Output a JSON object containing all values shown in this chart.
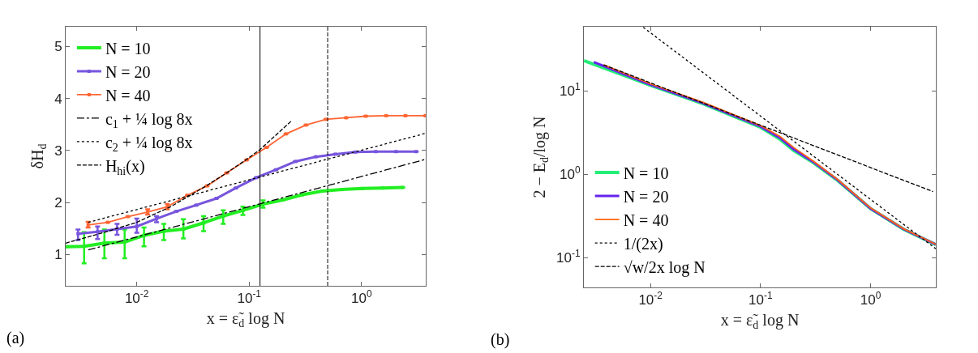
{
  "chart_data": [
    {
      "type": "line",
      "xlabel": "x = ε̃$_{d}$ log N",
      "ylabel": "δH$_{d}$",
      "log": "x",
      "grid": false,
      "legend": "top left",
      "xlim": [
        0.00233,
        3.73
      ],
      "ylim": [
        0.4,
        5.38
      ],
      "xticks": [
        {
          "value": 0.01,
          "label": "10$^{-2}$"
        },
        {
          "value": 0.1,
          "label": "10$^{-1}$"
        },
        {
          "value": 1,
          "label": "10$^{0}$"
        }
      ],
      "yticks": [
        1,
        2,
        3,
        4,
        5
      ],
      "ref_lines": [
        {
          "axis": "x",
          "value": 0.125,
          "color": "#000000",
          "line_style": "solid"
        },
        {
          "axis": "x",
          "value": 0.5,
          "color": "#000000",
          "line_style": "dashed"
        }
      ],
      "annotations": [
        "(a)"
      ],
      "series": [
        {
          "name": "N = 10",
          "color": "#22ee22",
          "marker": "square",
          "line_style": "solid",
          "x": [
            0.00235,
            0.0034,
            0.00515,
            0.0078,
            0.0116,
            0.0174,
            0.026,
            0.0393,
            0.0588,
            0.088,
            0.133,
            0.199,
            0.298,
            0.448,
            0.671,
            1.02,
            1.54,
            2.33
          ],
          "values": [
            1.15,
            1.16,
            1.22,
            1.24,
            1.37,
            1.45,
            1.49,
            1.61,
            1.74,
            1.85,
            1.97,
            2.05,
            2.15,
            2.22,
            2.25,
            2.27,
            2.28,
            2.29
          ],
          "errors": [
            null,
            [
              0.83,
              1.43
            ],
            [
              0.93,
              1.48
            ],
            [
              0.93,
              1.48
            ],
            [
              1.16,
              1.52
            ],
            [
              1.28,
              1.59
            ],
            [
              1.31,
              1.68
            ],
            [
              1.45,
              1.74
            ],
            [
              1.59,
              1.85
            ],
            [
              1.76,
              1.92
            ],
            [
              1.9,
              2.04
            ],
            null,
            null,
            null,
            null,
            null,
            null,
            null
          ]
        },
        {
          "name": "N = 20",
          "color": "#7755dd",
          "marker": "square",
          "line_style": "solid",
          "x": [
            0.003,
            0.00448,
            0.00668,
            0.01,
            0.015,
            0.0225,
            0.0338,
            0.0512,
            0.0762,
            0.116,
            0.173,
            0.258,
            0.393,
            0.585,
            0.885,
            1.34,
            2.03,
            3.07
          ],
          "values": [
            1.4,
            1.44,
            1.49,
            1.54,
            1.69,
            1.83,
            1.95,
            2.08,
            2.28,
            2.48,
            2.63,
            2.79,
            2.88,
            2.93,
            2.97,
            2.98,
            2.98,
            2.98
          ],
          "errors": [
            [
              1.28,
              1.48
            ],
            [
              1.3,
              1.54
            ],
            [
              1.38,
              1.59
            ],
            [
              1.42,
              1.69
            ],
            [
              1.62,
              1.74
            ],
            null,
            null,
            null,
            null,
            null,
            null,
            null,
            null,
            null,
            null,
            null,
            null,
            null
          ]
        },
        {
          "name": "N = 40",
          "color": "#ff6633",
          "marker": "square",
          "line_style": "solid",
          "x": [
            0.00369,
            0.00553,
            0.00833,
            0.0125,
            0.0187,
            0.0282,
            0.0422,
            0.0631,
            0.095,
            0.143,
            0.213,
            0.321,
            0.482,
            0.73,
            1.09,
            1.66,
            2.46,
            3.7
          ],
          "values": [
            1.57,
            1.62,
            1.73,
            1.82,
            1.92,
            2.14,
            2.32,
            2.57,
            2.82,
            3.06,
            3.32,
            3.49,
            3.6,
            3.63,
            3.66,
            3.67,
            3.67,
            3.67
          ],
          "errors": [
            [
              1.52,
              1.63
            ],
            null,
            null,
            [
              1.77,
              1.87
            ],
            [
              1.87,
              1.97
            ],
            null,
            null,
            null,
            null,
            null,
            null,
            null,
            null,
            null,
            null,
            null,
            null,
            null
          ]
        },
        {
          "name": "c$_{1}$ + ¼ log 8x",
          "color": "#000000",
          "marker": "none",
          "line_style": "dashdot",
          "x": [
            0.0037,
            3.7
          ],
          "values": [
            1.09,
            2.83
          ]
        },
        {
          "name": "c$_{2}$ + ¼ log 8x",
          "color": "#000000",
          "marker": "none",
          "line_style": "dotted",
          "x": [
            0.0037,
            3.7
          ],
          "values": [
            1.62,
            3.33
          ]
        },
        {
          "name": "H$_{hi}$(x)",
          "color": "#000000",
          "marker": "none",
          "line_style": "dashed",
          "x": [
            0.00233,
            0.005,
            0.01,
            0.02,
            0.04,
            0.0631,
            0.095,
            0.125,
            0.241
          ],
          "values": [
            1.22,
            1.42,
            1.62,
            1.92,
            2.3,
            2.57,
            2.83,
            3.02,
            3.58
          ]
        }
      ]
    },
    {
      "type": "line",
      "xlabel": "x = ε̃$_{d}$ log N",
      "ylabel": "2 − E$_{d}$/log N",
      "log": "xy",
      "grid": false,
      "legend": "bottom left",
      "xlim": [
        0.00248,
        3.92
      ],
      "ylim": [
        0.044,
        59
      ],
      "xticks": [
        {
          "value": 0.01,
          "label": "10$^{-2}$"
        },
        {
          "value": 0.1,
          "label": "10$^{-1}$"
        },
        {
          "value": 1,
          "label": "10$^{0}$"
        }
      ],
      "yticks": [
        {
          "value": 0.1,
          "label": "10$^{-1}$"
        },
        {
          "value": 1,
          "label": "10$^{0}$"
        },
        {
          "value": 10,
          "label": "10$^{1}$"
        }
      ],
      "annotations": [
        "(b)"
      ],
      "series": [
        {
          "name": "N = 10",
          "color": "#22ee77",
          "marker": "none",
          "line_style": "solid",
          "x": [
            0.00248,
            0.01,
            0.03,
            0.1,
            0.15,
            0.2,
            0.3,
            0.5,
            1,
            2,
            3.92
          ],
          "values": [
            23.1,
            11.7,
            7.03,
            3.67,
            2.64,
            1.93,
            1.39,
            0.849,
            0.388,
            0.219,
            0.143
          ]
        },
        {
          "name": "N = 20",
          "color": "#6622ee",
          "marker": "none",
          "line_style": "solid",
          "x": [
            0.00305,
            0.01,
            0.03,
            0.1,
            0.15,
            0.2,
            0.3,
            0.5,
            1,
            2,
            3.92
          ],
          "values": [
            22.2,
            11.9,
            7.15,
            3.75,
            2.75,
            2.0,
            1.42,
            0.86,
            0.39,
            0.22,
            0.144
          ]
        },
        {
          "name": "N = 40",
          "color": "#ff6611",
          "marker": "none",
          "line_style": "solid",
          "x": [
            0.00375,
            0.01,
            0.03,
            0.1,
            0.15,
            0.2,
            0.3,
            0.5,
            1,
            2,
            3.92
          ],
          "values": [
            20.6,
            12.2,
            7.3,
            3.85,
            2.85,
            2.1,
            1.45,
            0.87,
            0.395,
            0.222,
            0.145
          ]
        },
        {
          "name": "1/(2x)",
          "color": "#000000",
          "marker": "none",
          "line_style": "dotted",
          "x": [
            0.0086,
            3.92
          ],
          "values": [
            58,
            0.128
          ]
        },
        {
          "name": "√w/2x log N",
          "color": "#000000",
          "marker": "none",
          "line_style": "dashed",
          "x": [
            0.00375,
            3.7
          ],
          "values": [
            20.6,
            0.62
          ]
        }
      ]
    }
  ]
}
